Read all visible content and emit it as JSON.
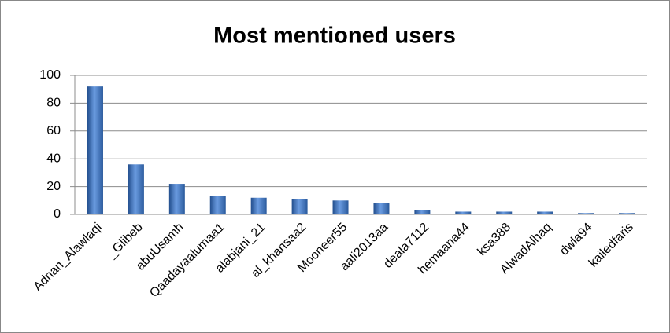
{
  "chart_data": {
    "type": "bar",
    "title": "Most mentioned users",
    "categories": [
      "Adnan_Alawlaqi",
      "_Glibeb",
      "abuUsamh",
      "Qaadayaalumaa1",
      "alabjani_21",
      "al_khansaa2",
      "Mooneer55",
      "aali2013aa",
      "deala7112",
      "hemaana44",
      "ksa388",
      "AlwadAlhaq",
      "dwla94",
      "kailedfaris"
    ],
    "values": [
      92,
      36,
      22,
      13,
      12,
      11,
      10,
      8,
      3,
      2,
      2,
      2,
      1,
      1
    ],
    "color": "#3a6fb8",
    "ylim": [
      0,
      100
    ],
    "yticks": [
      0,
      20,
      40,
      60,
      80,
      100
    ],
    "grid": true
  }
}
